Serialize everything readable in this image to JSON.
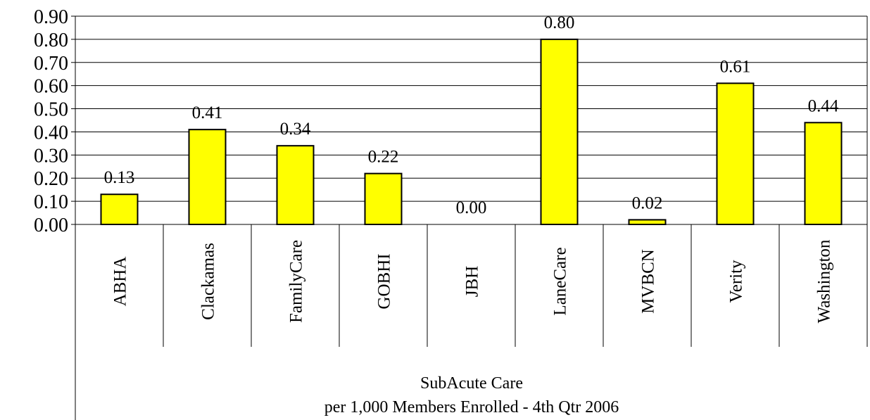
{
  "chart_data": {
    "type": "bar",
    "categories": [
      "ABHA",
      "Clackamas",
      "FamilyCare",
      "GOBHI",
      "JBH",
      "LaneCare",
      "MVBCN",
      "Verity",
      "Washington"
    ],
    "values": [
      0.13,
      0.41,
      0.34,
      0.22,
      0.0,
      0.8,
      0.02,
      0.61,
      0.44
    ],
    "value_labels": [
      "0.13",
      "0.41",
      "0.34",
      "0.22",
      "0.00",
      "0.80",
      "0.02",
      "0.61",
      "0.44"
    ],
    "ylim": [
      0,
      0.9
    ],
    "yticks": [
      "0.00",
      "0.10",
      "0.20",
      "0.30",
      "0.40",
      "0.50",
      "0.60",
      "0.70",
      "0.80",
      "0.90"
    ],
    "xlabel_lines": [
      "SubAcute Care",
      "per 1,000 Members Enrolled - 4th Qtr 2006"
    ],
    "grid": true,
    "legend": "none",
    "colors": {
      "bar_fill": "#FFFF00",
      "bar_stroke": "#000000",
      "grid": "#000000",
      "text": "#000000"
    }
  }
}
